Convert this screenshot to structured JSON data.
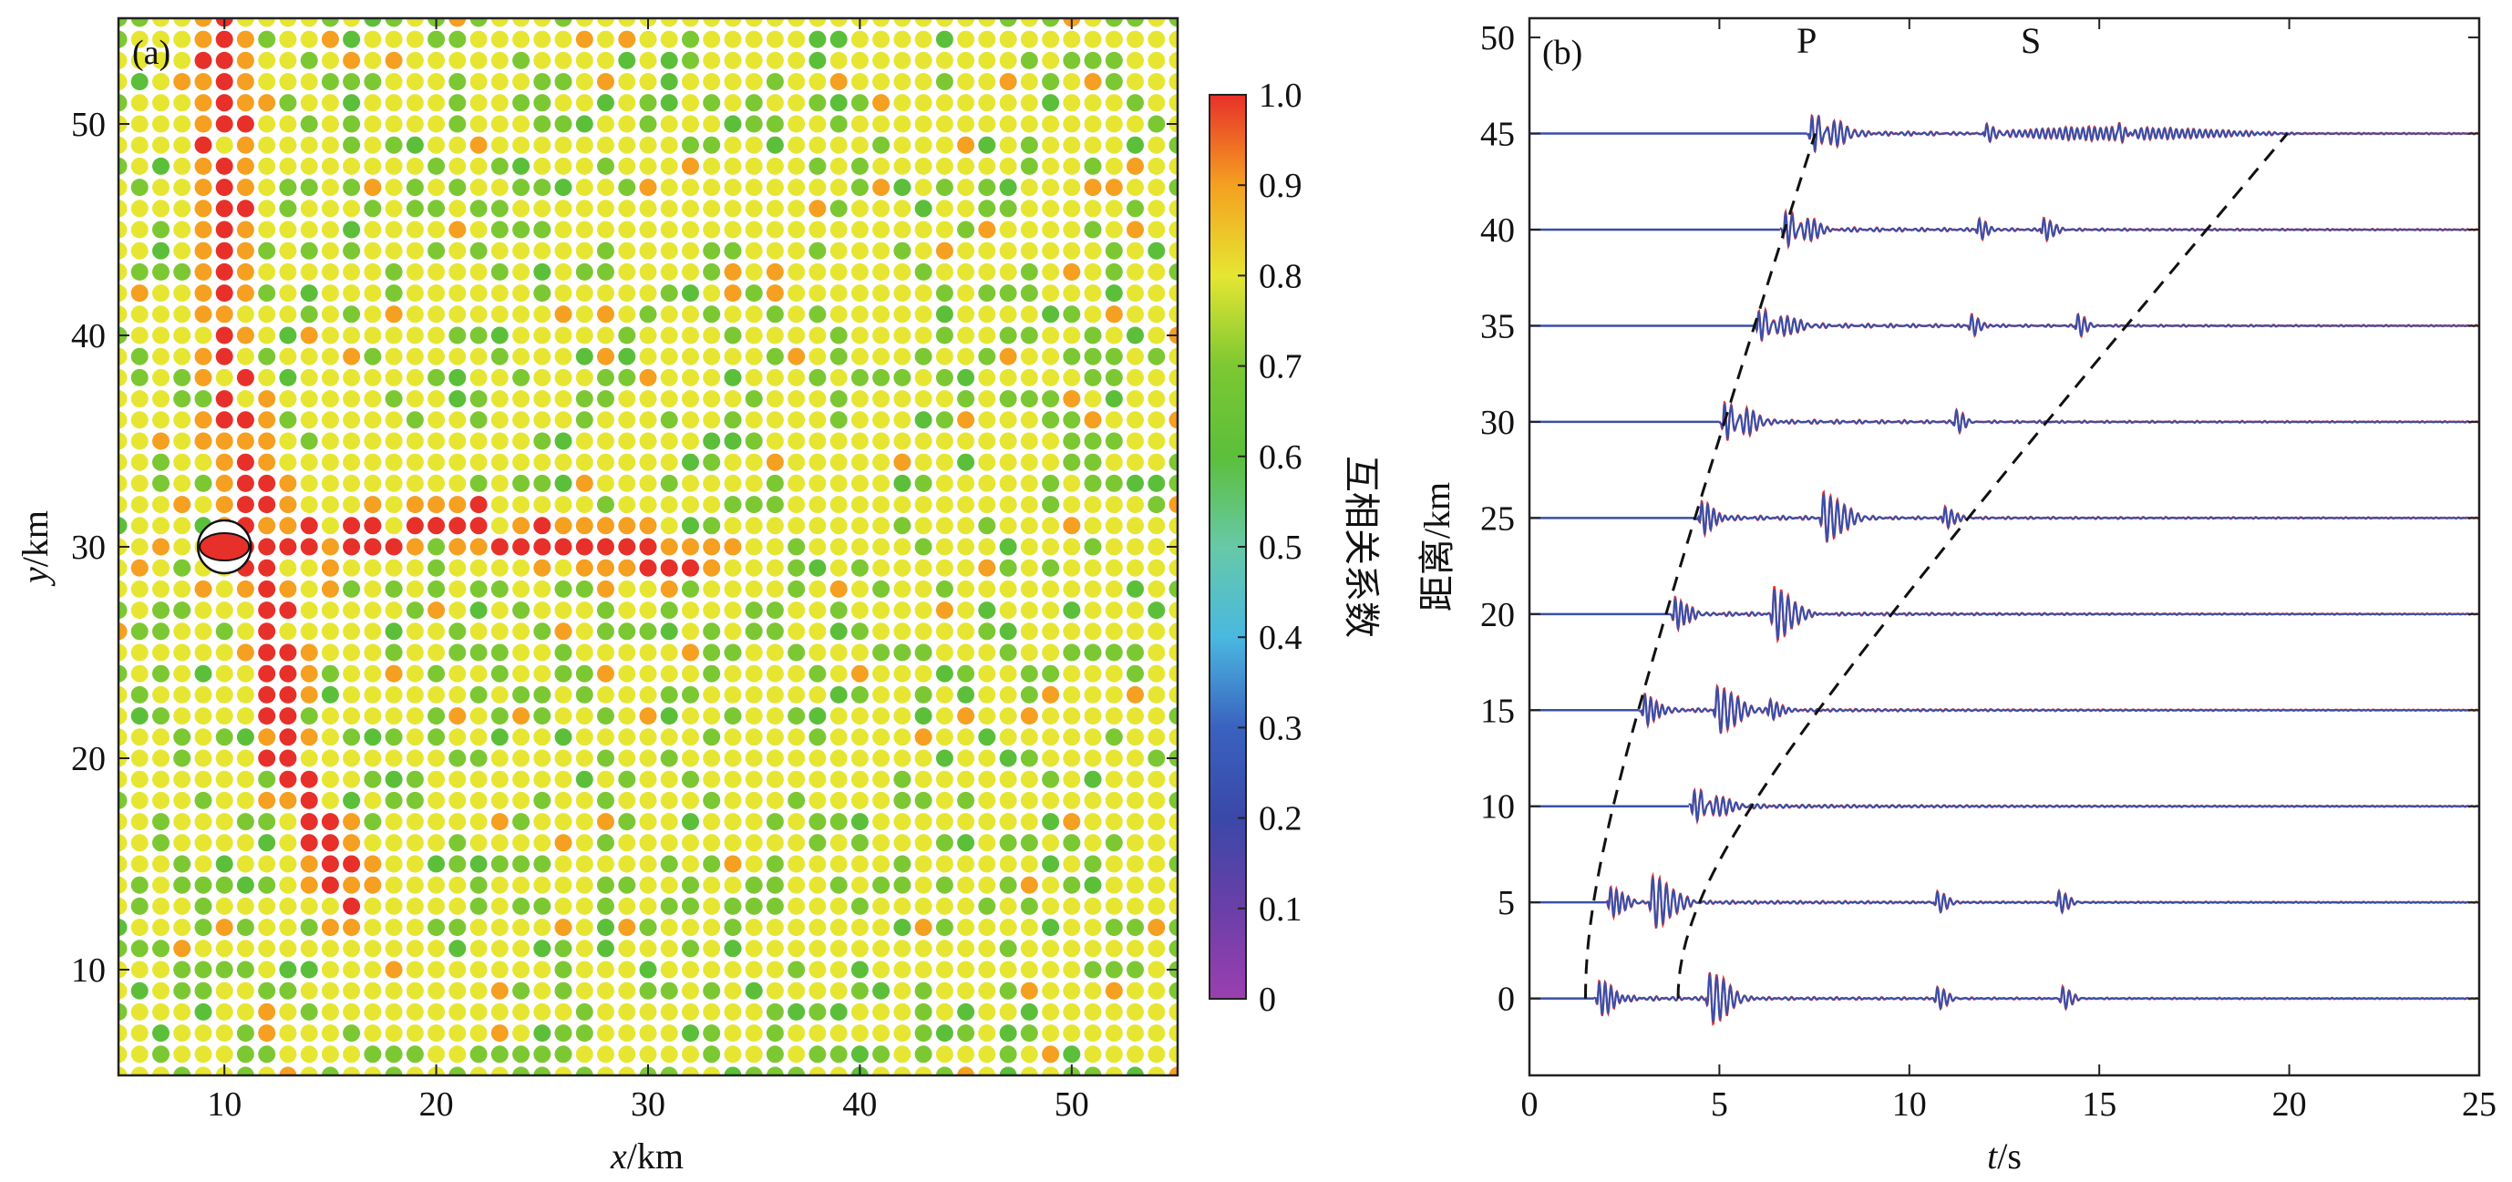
{
  "chart_data": [
    {
      "type": "scatter",
      "panel_label": "(a)",
      "xlabel_var": "x",
      "xlabel_unit": "/km",
      "ylabel_var": "y",
      "ylabel_unit": "/km",
      "xlim": [
        5,
        55
      ],
      "ylim": [
        5,
        55
      ],
      "xticks": [
        10,
        20,
        30,
        40,
        50
      ],
      "yticks": [
        10,
        20,
        30,
        40,
        50
      ],
      "grid_spacing_km": 1,
      "colorbar": {
        "label": "互相关系数",
        "range": [
          0,
          1
        ],
        "ticks": [
          "0",
          "0.1",
          "0.2",
          "0.3",
          "0.4",
          "0.5",
          "0.6",
          "0.7",
          "0.8",
          "0.9",
          "1.0"
        ],
        "colormap": [
          "#9b3fb0",
          "#6a3fa8",
          "#3a48a8",
          "#3a62c0",
          "#4ab8e0",
          "#66c9a8",
          "#5cbf3a",
          "#7cc832",
          "#e6e632",
          "#f5a020",
          "#e8302a"
        ]
      },
      "source_marker": {
        "x": 10,
        "y": 30,
        "type": "focal-mechanism"
      },
      "peak_lines": [
        {
          "name": "N-S band",
          "points": [
            [
              10,
              54
            ],
            [
              10,
              40
            ],
            [
              12,
              30
            ],
            [
              13,
              20
            ],
            [
              16,
              13
            ]
          ],
          "peak": 1.0
        },
        {
          "name": "E-W band",
          "points": [
            [
              11,
              30
            ],
            [
              20,
              31
            ],
            [
              28,
              30
            ],
            [
              33,
              29
            ]
          ],
          "peak": 0.97
        }
      ]
    },
    {
      "type": "line",
      "panel_label": "(b)",
      "xlabel_var": "t",
      "xlabel_unit": "/s",
      "ylabel": "距离/km",
      "xlim": [
        0,
        25
      ],
      "ylim": [
        -4,
        51
      ],
      "xticks": [
        0,
        5,
        10,
        15,
        20,
        25
      ],
      "yticks": [
        0,
        5,
        10,
        15,
        20,
        25,
        30,
        35,
        40,
        45,
        50
      ],
      "phase_labels": [
        {
          "text": "P",
          "x": 7.3
        },
        {
          "text": "S",
          "x": 13.2
        }
      ],
      "trace_offsets_km": [
        0,
        5,
        10,
        15,
        20,
        25,
        30,
        35,
        40,
        45
      ],
      "series": [
        {
          "color": "#e8302a"
        },
        {
          "color": "#3a4fa8"
        }
      ],
      "p_moveout": {
        "depth_km": 9,
        "v_km_s": 6.1
      },
      "s_moveout": {
        "depth_km": 9,
        "v_km_s": 2.3
      },
      "arrivals": [
        {
          "distance": 0,
          "p": 1.8,
          "direct": 4.7,
          "late": [
            10.7,
            14.0
          ]
        },
        {
          "distance": 5,
          "p": 2.1,
          "direct": 3.2,
          "late": [
            10.7,
            13.9
          ]
        },
        {
          "distance": 10,
          "p": 4.3,
          "direct": 4.3,
          "late": []
        },
        {
          "distance": 15,
          "p": 3.0,
          "direct": 4.9,
          "late": [
            6.3
          ]
        },
        {
          "distance": 20,
          "p": 3.8,
          "direct": 6.4,
          "late": []
        },
        {
          "distance": 25,
          "p": 4.5,
          "direct": 7.7,
          "late": [
            10.9
          ]
        },
        {
          "distance": 30,
          "p": 5.1,
          "direct": 5.1,
          "late": [
            11.2
          ]
        },
        {
          "distance": 35,
          "p": 6.0,
          "direct": 6.0,
          "late": [
            11.6,
            14.4
          ]
        },
        {
          "distance": 40,
          "p": 6.7,
          "direct": 6.7,
          "late": [
            11.8,
            13.5
          ]
        },
        {
          "distance": 45,
          "p": 7.4,
          "direct": 7.4,
          "late": [
            12.0,
            15.5
          ]
        }
      ]
    }
  ]
}
